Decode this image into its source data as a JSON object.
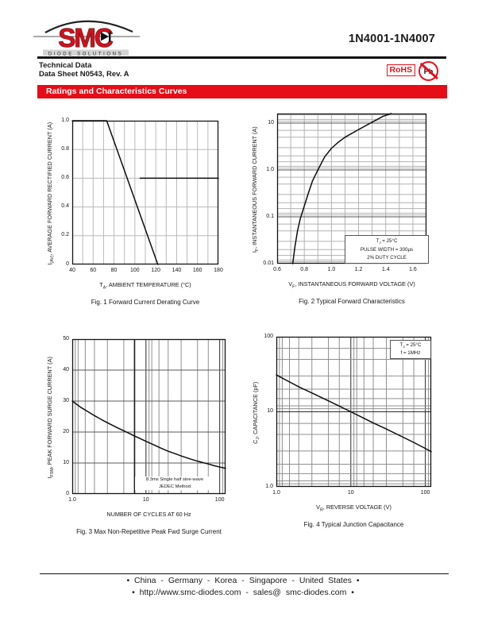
{
  "header": {
    "logo": {
      "brand": "SMC",
      "tagline": "DIODE SOLUTIONS"
    },
    "part_number": "1N4001-1N4007",
    "doc_type": "Technical Data",
    "doc_ref": "Data Sheet N0543, Rev. A",
    "badges": {
      "rohs": "RoHS",
      "pb_free": "Pb"
    }
  },
  "section_banner": "Ratings and Characteristics Curves",
  "colors": {
    "accent_red": "#e8101c",
    "banner_red": "#e60d17",
    "grid_gray": "#b9b9b9",
    "curve_black": "#0d0d0d"
  },
  "chart_data": [
    {
      "type": "line",
      "id": "fig1",
      "caption": "Fig. 1 Forward Current Derating Curve",
      "x": {
        "type": "linear",
        "min": 40,
        "max": 180,
        "grid_step": 10,
        "title": "T_{A}, AMBIENT TEMPERATURE (°C)",
        "ticks": [
          {
            "v": 40,
            "label": "40"
          },
          {
            "v": 60,
            "label": "60"
          },
          {
            "v": 80,
            "label": "80"
          },
          {
            "v": 100,
            "label": "100"
          },
          {
            "v": 120,
            "label": "120"
          },
          {
            "v": 140,
            "label": "140"
          },
          {
            "v": 160,
            "label": "160"
          },
          {
            "v": 180,
            "label": "180"
          }
        ]
      },
      "y": {
        "type": "linear",
        "min": 0,
        "max": 1.0,
        "grid_step": 0.2,
        "title": "I_{(AV)}, AVERAGE FORWARD RECTIFIED CURRENT (A)",
        "ticks": [
          {
            "v": 0,
            "label": "0"
          },
          {
            "v": 0.2,
            "label": "0.2"
          },
          {
            "v": 0.4,
            "label": "0.4"
          },
          {
            "v": 0.6,
            "label": "0.6"
          },
          {
            "v": 0.8,
            "label": "0.8"
          },
          {
            "v": 1.0,
            "label": "1.0"
          }
        ]
      },
      "series": [
        {
          "name": "forward-current-derating-curve",
          "points": [
            [
              40,
              1.0
            ],
            [
              73,
              1.0
            ],
            [
              122,
              0
            ]
          ]
        },
        {
          "name": "derated-0p6A-segment",
          "points": [
            [
              105,
              0.6
            ],
            [
              180,
              0.6
            ]
          ]
        }
      ],
      "annotation": []
    },
    {
      "type": "line",
      "id": "fig2",
      "caption": "Fig. 2 Typical Forward Characteristics",
      "x": {
        "type": "linear",
        "min": 0.6,
        "max": 1.7,
        "grid_step": 0.1,
        "title": "V_{F}, INSTANTANEOUS FORWARD VOLTAGE (V)",
        "ticks": [
          {
            "v": 0.6,
            "label": "0.6"
          },
          {
            "v": 0.8,
            "label": "0.8"
          },
          {
            "v": 1.0,
            "label": "1.0"
          },
          {
            "v": 1.2,
            "label": "1.2"
          },
          {
            "v": 1.4,
            "label": "1.4"
          },
          {
            "v": 1.6,
            "label": "1.6"
          }
        ]
      },
      "y": {
        "type": "log",
        "min": 0.01,
        "max": 16,
        "title": "I_{F}, INSTANTANEOUS FORWARD CURRENT (A)",
        "ticks": [
          {
            "v": 0.01,
            "label": "0.01"
          },
          {
            "v": 0.1,
            "label": "0.1"
          },
          {
            "v": 1,
            "label": "1.0"
          },
          {
            "v": 10,
            "label": "10"
          }
        ]
      },
      "series": [
        {
          "name": "typical-forward-characteristic",
          "points": [
            [
              0.715,
              0.01
            ],
            [
              0.73,
              0.022
            ],
            [
              0.75,
              0.05
            ],
            [
              0.77,
              0.09
            ],
            [
              0.8,
              0.17
            ],
            [
              0.83,
              0.32
            ],
            [
              0.86,
              0.58
            ],
            [
              0.9,
              1.0
            ],
            [
              0.95,
              1.9
            ],
            [
              1.0,
              2.9
            ],
            [
              1.05,
              3.9
            ],
            [
              1.1,
              5.0
            ],
            [
              1.2,
              7.3
            ],
            [
              1.3,
              10.5
            ],
            [
              1.38,
              14.0
            ],
            [
              1.44,
              16.0
            ]
          ]
        }
      ],
      "annotation": [
        "T_{J} = 25°C",
        "PULSE WIDTH = 300µs",
        "2% DUTY CYCLE"
      ]
    },
    {
      "type": "line",
      "id": "fig3",
      "caption": "Fig. 3  Max Non-Repetitive Peak Fwd Surge Current",
      "x": {
        "type": "log",
        "min": 1,
        "max": 120,
        "dark_lines": [
          7
        ],
        "title": "NUMBER OF CYCLES AT 60 Hz",
        "ticks": [
          {
            "v": 1,
            "label": "1.0"
          },
          {
            "v": 10,
            "label": "10"
          },
          {
            "v": 100,
            "label": "100"
          }
        ]
      },
      "y": {
        "type": "linear",
        "min": 0,
        "max": 50,
        "grid_step": 10,
        "title": "I_{FSM}, PEAK FORWARD SURGE CURRENT (A)",
        "ticks": [
          {
            "v": 0,
            "label": "0"
          },
          {
            "v": 10,
            "label": "10"
          },
          {
            "v": 20,
            "label": "20"
          },
          {
            "v": 30,
            "label": "30"
          },
          {
            "v": 40,
            "label": "40"
          },
          {
            "v": 50,
            "label": "50"
          }
        ]
      },
      "series": [
        {
          "name": "peak-forward-surge-current",
          "points": [
            [
              1,
              30
            ],
            [
              1.3,
              28
            ],
            [
              1.6,
              26.7
            ],
            [
              2,
              25.3
            ],
            [
              2.5,
              24
            ],
            [
              3,
              23
            ],
            [
              4,
              21.5
            ],
            [
              5,
              20.4
            ],
            [
              6,
              19.5
            ],
            [
              7,
              18.7
            ],
            [
              8,
              18.1
            ],
            [
              10,
              17
            ],
            [
              13,
              15.8
            ],
            [
              16,
              14.8
            ],
            [
              20,
              13.8
            ],
            [
              25,
              13
            ],
            [
              30,
              12.3
            ],
            [
              40,
              11.3
            ],
            [
              50,
              10.6
            ],
            [
              60,
              10.1
            ],
            [
              70,
              9.7
            ],
            [
              85,
              9.1
            ],
            [
              100,
              8.7
            ],
            [
              120,
              8.3
            ]
          ]
        }
      ],
      "annotation": [
        "8.3ms Single half sine-wave",
        "JEDEC Method"
      ]
    },
    {
      "type": "line",
      "id": "fig4",
      "caption": "Fig. 4 Typical Junction Capacitance",
      "x": {
        "type": "log",
        "min": 1,
        "max": 120,
        "title": "V_{R}, REVERSE VOLTAGE (V)",
        "ticks": [
          {
            "v": 1,
            "label": "1.0"
          },
          {
            "v": 10,
            "label": "10"
          },
          {
            "v": 100,
            "label": "100"
          }
        ]
      },
      "y": {
        "type": "log",
        "min": 1,
        "max": 100,
        "title": "C_{J}, CAPACITANCE (pF)",
        "ticks": [
          {
            "v": 1,
            "label": "1.0"
          },
          {
            "v": 10,
            "label": "10"
          },
          {
            "v": 100,
            "label": "100"
          }
        ]
      },
      "series": [
        {
          "name": "typical-junction-capacitance",
          "points": [
            [
              1,
              31
            ],
            [
              1.5,
              25
            ],
            [
              2,
              21.5
            ],
            [
              3,
              17.8
            ],
            [
              5,
              14
            ],
            [
              7,
              11.9
            ],
            [
              10,
              10
            ],
            [
              15,
              8.2
            ],
            [
              20,
              7.1
            ],
            [
              30,
              5.9
            ],
            [
              50,
              4.6
            ],
            [
              70,
              3.9
            ],
            [
              100,
              3.25
            ],
            [
              120,
              2.95
            ]
          ]
        }
      ],
      "annotation": [
        "T_{J} = 25°C",
        "f = 1MHz"
      ]
    }
  ],
  "footer": {
    "locations": "• China - Germany - Korea - Singapore - United States •",
    "contact": "• http://www.smc-diodes.com - sales@ smc-diodes.com •"
  }
}
